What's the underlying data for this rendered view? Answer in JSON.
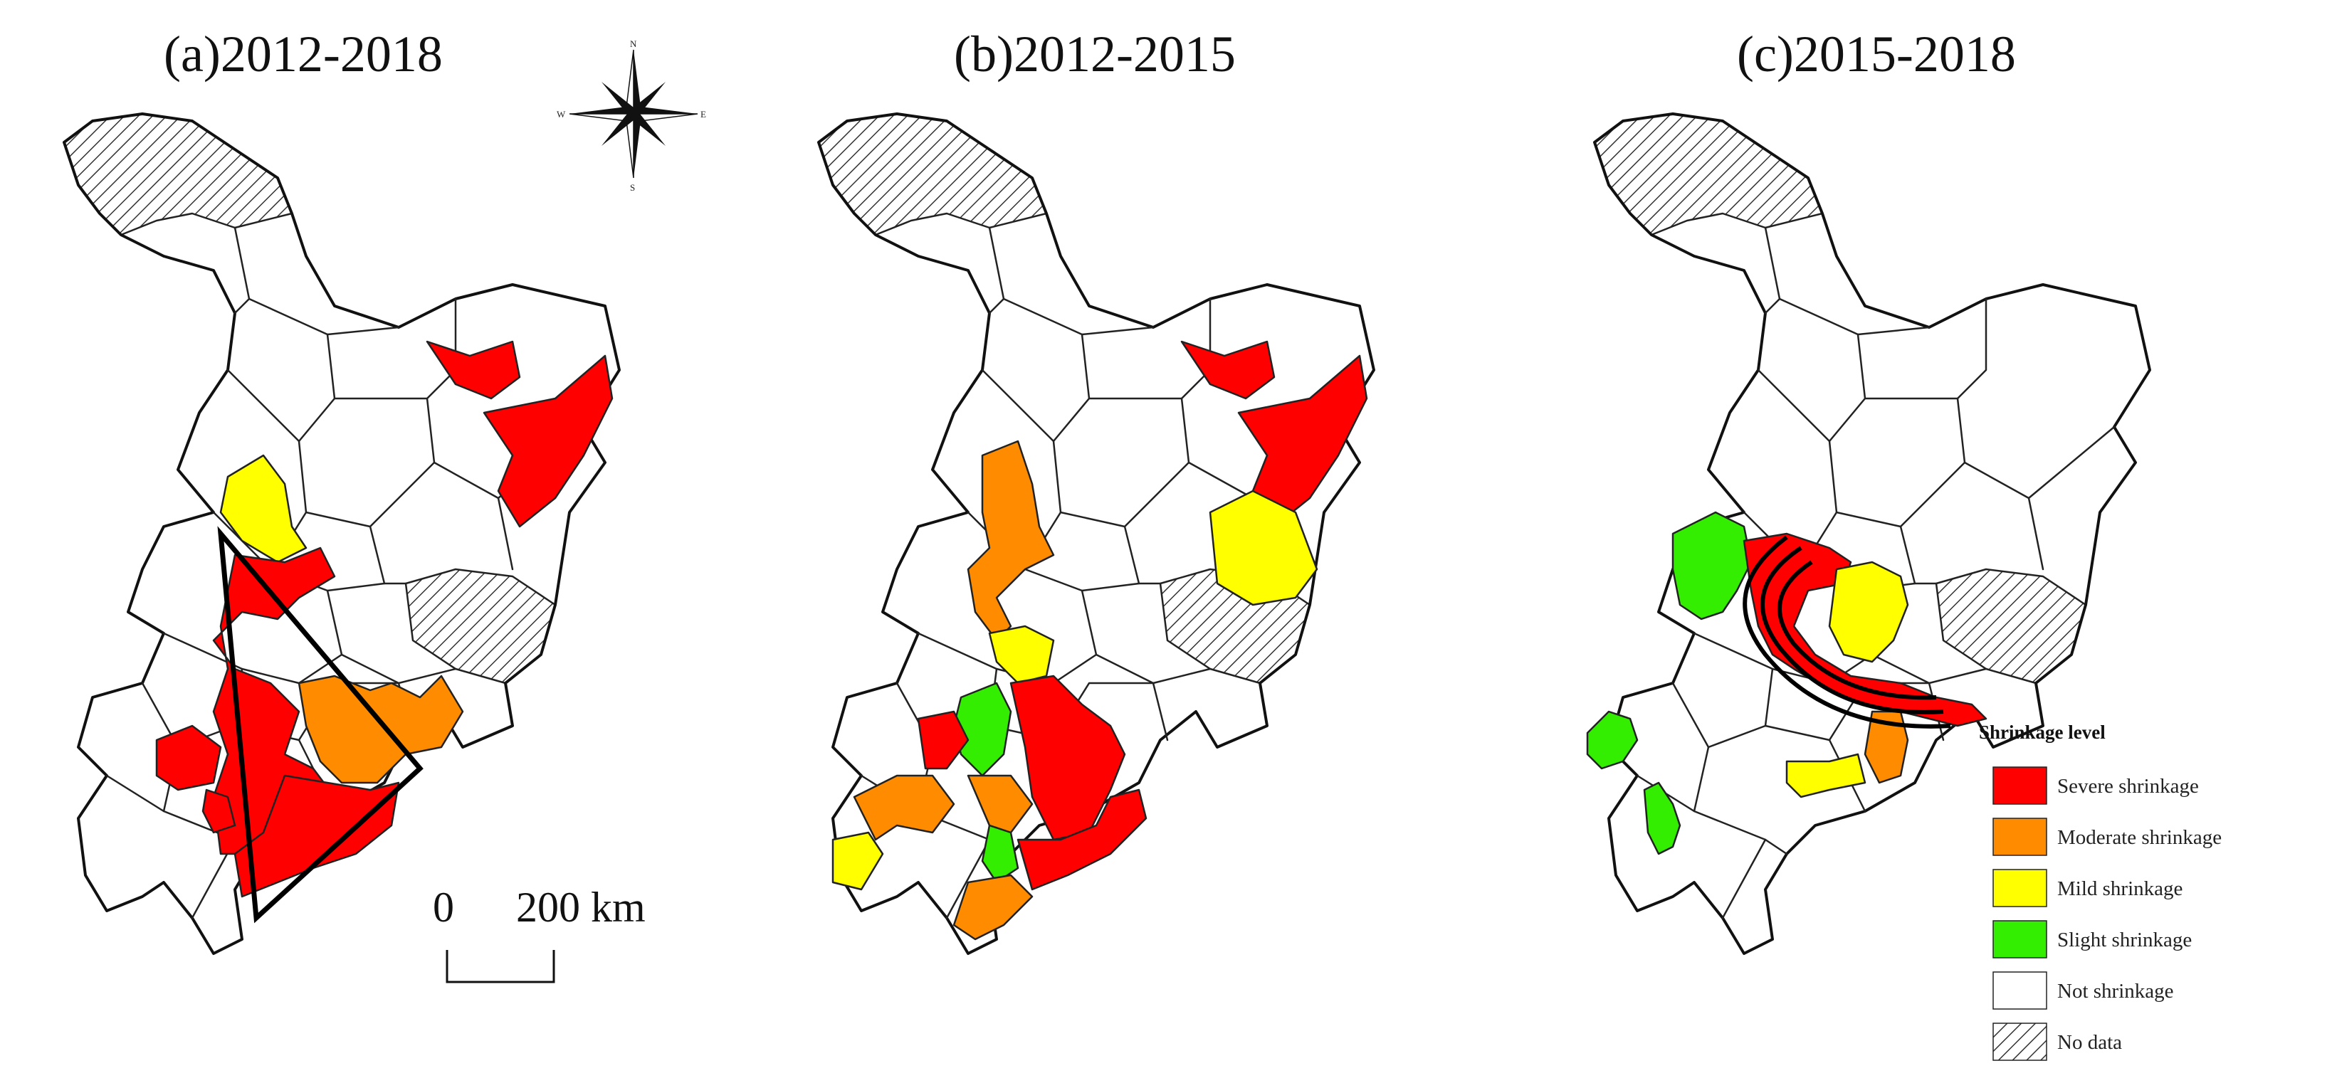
{
  "figure": {
    "panels": [
      {
        "id": "a",
        "title": "(a)2012-2018"
      },
      {
        "id": "b",
        "title": "(b)2012-2015"
      },
      {
        "id": "c",
        "title": "(c)2015-2018"
      }
    ],
    "compass": {
      "n": "N",
      "s": "S",
      "e": "E",
      "w": "W"
    },
    "scale_bar": {
      "zero": "0",
      "distance": "200 km"
    }
  },
  "legend": {
    "title": "Shrinkage level",
    "items": [
      {
        "label": "Severe shrinkage",
        "color": "#ff0000",
        "pattern": false
      },
      {
        "label": "Moderate shrinkage",
        "color": "#ff8c00",
        "pattern": false
      },
      {
        "label": "Mild shrinkage",
        "color": "#ffff00",
        "pattern": false
      },
      {
        "label": "Slight shrinkage",
        "color": "#33ee00",
        "pattern": false
      },
      {
        "label": "Not shrinkage",
        "color": "#ffffff",
        "pattern": false
      },
      {
        "label": "No data",
        "color": "#ffffff",
        "pattern": true
      }
    ]
  },
  "colors": {
    "severe": "#ff0000",
    "moderate": "#ff8c00",
    "mild": "#ffff00",
    "slight": "#33ee00",
    "not": "#ffffff",
    "nodata_hatch": "#333333"
  }
}
